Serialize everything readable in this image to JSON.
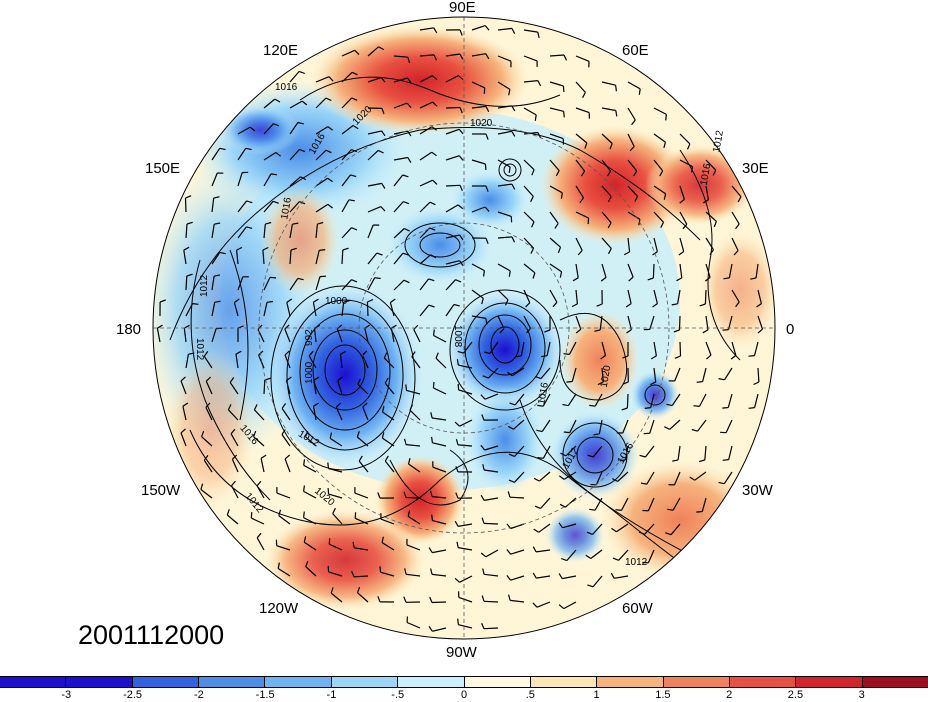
{
  "map": {
    "projection": "north polar stereographic",
    "timestamp": "2001112000",
    "longitude_labels": {
      "e90": "90E",
      "e60": "60E",
      "e30": "30E",
      "lon0": "0",
      "w30": "30W",
      "w60": "60W",
      "w90": "90W",
      "w120": "120W",
      "w150": "150W",
      "lon180": "180",
      "e150": "150E",
      "e120": "120E"
    },
    "isobar_labels": [
      "1020",
      "1016",
      "1016",
      "1012",
      "1012",
      "1012",
      "1016",
      "1020",
      "1016",
      "1012",
      "1012",
      "1016",
      "1020",
      "1008",
      "1000",
      "992",
      "1000",
      "1012",
      "1016",
      "1012",
      "1020",
      "1016",
      "1012"
    ],
    "pressure_contours": true,
    "wind_barbs": true
  },
  "colorbar": {
    "colors": [
      "#1d0fd0",
      "#2f63e0",
      "#4a8ee8",
      "#6eb4f2",
      "#9ad6f8",
      "#c9eefc",
      "#fffadf",
      "#fbe6b2",
      "#f6b37c",
      "#ef8259",
      "#e8503f",
      "#d2242a",
      "#9f0e20"
    ],
    "tick_labels": [
      "-3",
      "-2.5",
      "-2",
      "-1.5",
      "-1",
      "-.5",
      "0",
      ".5",
      "1",
      "1.5",
      "2",
      "2.5",
      "3"
    ]
  }
}
